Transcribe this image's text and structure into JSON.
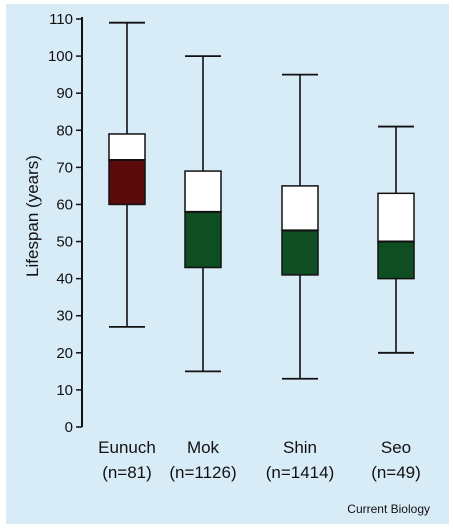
{
  "chart_data": {
    "type": "box",
    "ylabel": "Lifespan (years)",
    "ylim": [
      0,
      110
    ],
    "yticks": [
      0,
      10,
      20,
      30,
      40,
      50,
      60,
      70,
      80,
      90,
      100,
      110
    ],
    "grid": false,
    "categories": [
      "Eunuch",
      "Mok",
      "Shin",
      "Seo"
    ],
    "sample_sizes": [
      "(n=81)",
      "(n=1126)",
      "(n=1414)",
      "(n=49)"
    ],
    "boxes": [
      {
        "label": "Eunuch",
        "min": 27,
        "q1": 60,
        "median": 72,
        "q3": 79,
        "max": 109,
        "lower_color": "#5a0a0a"
      },
      {
        "label": "Mok",
        "min": 15,
        "q1": 43,
        "median": 58,
        "q3": 69,
        "max": 100,
        "lower_color": "#0f4d22"
      },
      {
        "label": "Shin",
        "min": 13,
        "q1": 41,
        "median": 53,
        "q3": 65,
        "max": 95,
        "lower_color": "#0f4d22"
      },
      {
        "label": "Seo",
        "min": 20,
        "q1": 40,
        "median": 50,
        "q3": 63,
        "max": 81,
        "lower_color": "#0f4d22"
      }
    ]
  },
  "credit": "Current Biology",
  "colors": {
    "background": "#d8ecf8",
    "upper_box": "#ffffff",
    "axis": "#111111"
  }
}
